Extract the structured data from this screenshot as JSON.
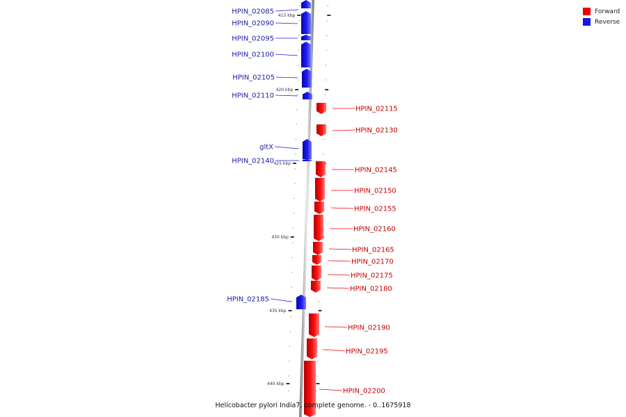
{
  "legend": {
    "forward_label": "Forward",
    "reverse_label": "Reverse",
    "forward_color": "#ee0000",
    "reverse_color": "#1515ee"
  },
  "caption": "Helicobacter pylori India7, complete genome. - 0..1675918",
  "ticks": [
    {
      "label": "415 kbp"
    },
    {
      "label": "420 kbp"
    },
    {
      "label": "425 kbp"
    },
    {
      "label": "430 kbp"
    },
    {
      "label": "435 kbp"
    },
    {
      "label": "440 kbp"
    }
  ],
  "genes": [
    {
      "name": "HPIN_02085",
      "strand": "reverse"
    },
    {
      "name": "HPIN_02090",
      "strand": "reverse"
    },
    {
      "name": "HPIN_02095",
      "strand": "reverse"
    },
    {
      "name": "HPIN_02100",
      "strand": "reverse"
    },
    {
      "name": "HPIN_02105",
      "strand": "reverse"
    },
    {
      "name": "HPIN_02110",
      "strand": "reverse"
    },
    {
      "name": "HPIN_02115",
      "strand": "forward"
    },
    {
      "name": "HPIN_02130",
      "strand": "forward"
    },
    {
      "name": "gltX",
      "strand": "reverse"
    },
    {
      "name": "HPIN_02140",
      "strand": "reverse"
    },
    {
      "name": "HPIN_02145",
      "strand": "forward"
    },
    {
      "name": "HPIN_02150",
      "strand": "forward"
    },
    {
      "name": "HPIN_02155",
      "strand": "forward"
    },
    {
      "name": "HPIN_02160",
      "strand": "forward"
    },
    {
      "name": "HPIN_02165",
      "strand": "forward"
    },
    {
      "name": "HPIN_02170",
      "strand": "forward"
    },
    {
      "name": "HPIN_02175",
      "strand": "forward"
    },
    {
      "name": "HPIN_02180",
      "strand": "forward"
    },
    {
      "name": "HPIN_02185",
      "strand": "reverse"
    },
    {
      "name": "HPIN_02190",
      "strand": "forward"
    },
    {
      "name": "HPIN_02195",
      "strand": "forward"
    },
    {
      "name": "HPIN_02200",
      "strand": "forward"
    }
  ]
}
